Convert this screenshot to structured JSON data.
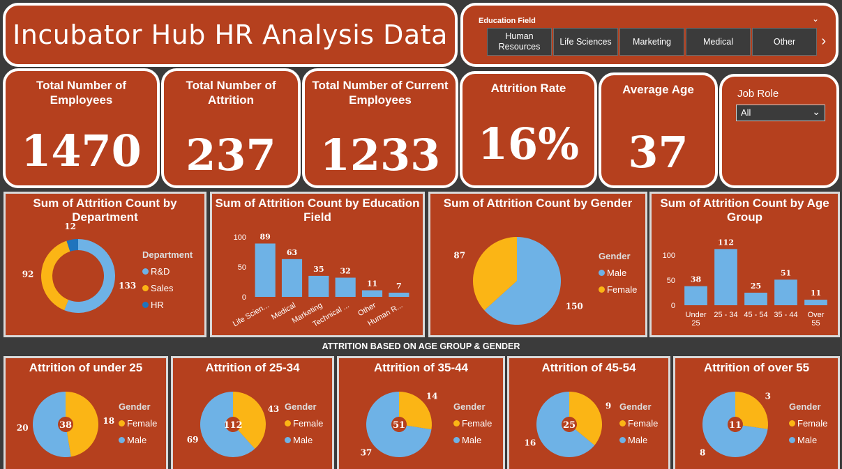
{
  "title": "Incubator Hub HR Analysis Data",
  "education_filter": {
    "label": "Education Field",
    "options": [
      "Human Resources",
      "Life Sciences",
      "Marketing",
      "Medical",
      "Other"
    ]
  },
  "kpis": {
    "total_employees": {
      "label": "Total Number of Employees",
      "value": "1470"
    },
    "total_attrition": {
      "label": "Total Number of Attrition",
      "value": "237"
    },
    "current_employees": {
      "label": "Total Number of Current Employees",
      "value": "1233"
    },
    "attrition_rate": {
      "label": "Attrition Rate",
      "value": "16%"
    },
    "average_age": {
      "label": "Average Age",
      "value": "37"
    }
  },
  "job_role": {
    "label": "Job Role",
    "selected": "All"
  },
  "colors": {
    "blue": "#6eb2e6",
    "orange": "#fbb515",
    "darkblue": "#1f74bd",
    "background": "#b5401e"
  },
  "section_label": "ATTRITION BASED ON AGE GROUP & GENDER",
  "chart_data": [
    {
      "type": "pie",
      "title": "Sum of Attrition Count by Department",
      "legend_title": "Department",
      "categories": [
        "R&D",
        "Sales",
        "HR"
      ],
      "values": [
        133,
        92,
        12
      ],
      "colors": [
        "#6eb2e6",
        "#fbb515",
        "#1f74bd"
      ]
    },
    {
      "type": "bar",
      "title": "Sum of Attrition Count by Education Field",
      "categories": [
        "Life Scien...",
        "Medical",
        "Marketing",
        "Technical ...",
        "Other",
        "Human R..."
      ],
      "values": [
        89,
        63,
        35,
        32,
        11,
        7
      ],
      "yticks": [
        "100",
        "50",
        "0"
      ],
      "ylim": [
        0,
        100
      ]
    },
    {
      "type": "pie",
      "title": "Sum of Attrition Count by Gender",
      "legend_title": "Gender",
      "categories": [
        "Male",
        "Female"
      ],
      "values": [
        150,
        87
      ],
      "colors": [
        "#6eb2e6",
        "#fbb515"
      ]
    },
    {
      "type": "bar",
      "title": "Sum of Attrition Count by Age Group",
      "categories": [
        "Under 25",
        "25 - 34",
        "45 - 54",
        "35 - 44",
        "Over 55"
      ],
      "values": [
        38,
        112,
        25,
        51,
        11
      ],
      "yticks": [
        "100",
        "50",
        "0"
      ],
      "ylim": [
        0,
        125
      ]
    },
    {
      "type": "pie",
      "title": "Attrition of under 25",
      "legend_title": "Gender",
      "categories": [
        "Female",
        "Male"
      ],
      "values": [
        18,
        20
      ],
      "total": "38",
      "colors": [
        "#fbb515",
        "#6eb2e6"
      ]
    },
    {
      "type": "pie",
      "title": "Attrition of 25-34",
      "legend_title": "Gender",
      "categories": [
        "Female",
        "Male"
      ],
      "values": [
        43,
        69
      ],
      "total": "112",
      "colors": [
        "#fbb515",
        "#6eb2e6"
      ]
    },
    {
      "type": "pie",
      "title": "Attrition of 35-44",
      "legend_title": "Gender",
      "categories": [
        "Female",
        "Male"
      ],
      "values": [
        14,
        37
      ],
      "total": "51",
      "colors": [
        "#fbb515",
        "#6eb2e6"
      ]
    },
    {
      "type": "pie",
      "title": "Attrition of 45-54",
      "legend_title": "Gender",
      "categories": [
        "Female",
        "Male"
      ],
      "values": [
        9,
        16
      ],
      "total": "25",
      "colors": [
        "#fbb515",
        "#6eb2e6"
      ]
    },
    {
      "type": "pie",
      "title": "Attrition of over 55",
      "legend_title": "Gender",
      "categories": [
        "Female",
        "Male"
      ],
      "values": [
        3,
        8
      ],
      "total": "11",
      "colors": [
        "#fbb515",
        "#6eb2e6"
      ]
    }
  ]
}
